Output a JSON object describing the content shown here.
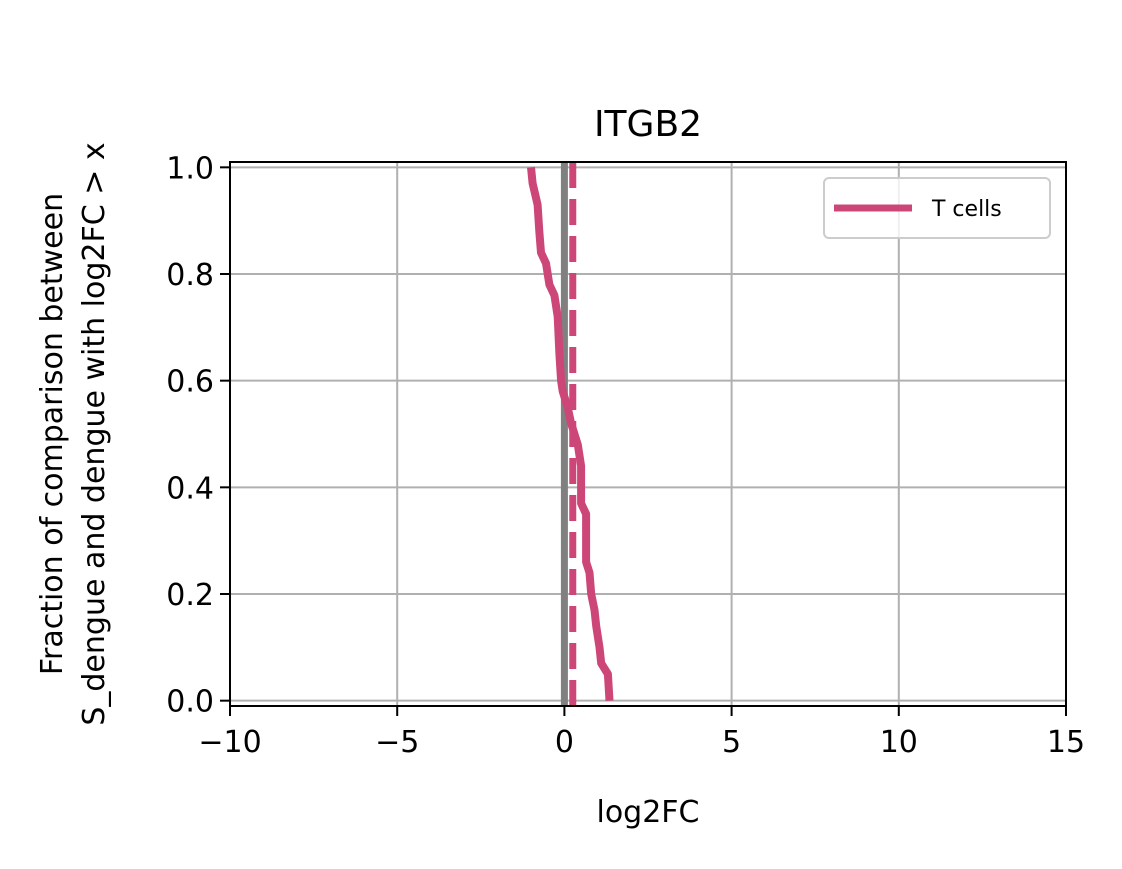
{
  "chart_data": {
    "type": "line",
    "title": "ITGB2",
    "xlabel": "log2FC",
    "ylabel_lines": [
      "Fraction of comparison between",
      "S_dengue and dengue with log2FC > x"
    ],
    "xlim": [
      -10,
      15
    ],
    "ylim": [
      0,
      1
    ],
    "x_ticks": [
      -10,
      -5,
      0,
      5,
      10,
      15
    ],
    "x_tick_labels": [
      "−10",
      "−5",
      "0",
      "5",
      "10",
      "15"
    ],
    "y_ticks": [
      0.0,
      0.2,
      0.4,
      0.6,
      0.8,
      1.0
    ],
    "y_tick_labels": [
      "0.0",
      "0.2",
      "0.4",
      "0.6",
      "0.8",
      "1.0"
    ],
    "grid": true,
    "legend_position": "top-right",
    "series": [
      {
        "name": "T cells",
        "color": "#cc4778",
        "points": [
          [
            1.35,
            0.0
          ],
          [
            1.3,
            0.05
          ],
          [
            1.1,
            0.07
          ],
          [
            1.05,
            0.1
          ],
          [
            0.95,
            0.14
          ],
          [
            0.9,
            0.17
          ],
          [
            0.8,
            0.2
          ],
          [
            0.75,
            0.24
          ],
          [
            0.65,
            0.26
          ],
          [
            0.65,
            0.35
          ],
          [
            0.5,
            0.37
          ],
          [
            0.5,
            0.44
          ],
          [
            0.4,
            0.48
          ],
          [
            0.2,
            0.52
          ],
          [
            0.1,
            0.55
          ],
          [
            -0.05,
            0.58
          ],
          [
            -0.1,
            0.6
          ],
          [
            -0.15,
            0.65
          ],
          [
            -0.2,
            0.72
          ],
          [
            -0.3,
            0.76
          ],
          [
            -0.45,
            0.78
          ],
          [
            -0.55,
            0.82
          ],
          [
            -0.7,
            0.84
          ],
          [
            -0.75,
            0.88
          ],
          [
            -0.8,
            0.93
          ],
          [
            -0.95,
            0.97
          ],
          [
            -1.0,
            1.0
          ]
        ]
      }
    ],
    "reference_lines": [
      {
        "x": 0,
        "style": "solid",
        "color": "#808080"
      },
      {
        "x": 0.25,
        "style": "dashed",
        "color": "#cc4778"
      }
    ]
  }
}
